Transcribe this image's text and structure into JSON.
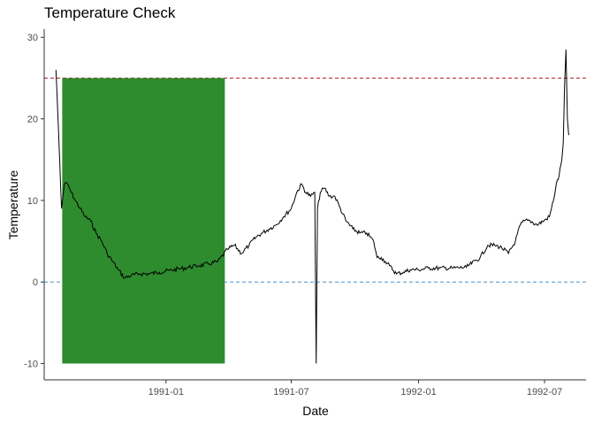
{
  "chart_data": {
    "type": "line",
    "title": "Temperature Check",
    "xlabel": "Date",
    "ylabel": "Temperature",
    "ylim": [
      -12,
      31
    ],
    "xlim": [
      "1990-07-09",
      "1992-08-30"
    ],
    "yticks": [
      -10,
      0,
      10,
      20,
      30
    ],
    "xticks": [
      {
        "date": "1991-01-01",
        "label": "1991-01"
      },
      {
        "date": "1991-07-01",
        "label": "1991-07"
      },
      {
        "date": "1992-01-01",
        "label": "1992-01"
      },
      {
        "date": "1992-07-01",
        "label": "1992-07"
      }
    ],
    "grid": false,
    "reference_lines": [
      {
        "y": 25,
        "color": "#b2182b",
        "style": "dashed"
      },
      {
        "y": 0,
        "color": "#4a90c8",
        "style": "dashed"
      }
    ],
    "shaded_region": {
      "x_start": "1990-08-04",
      "x_end": "1991-03-27",
      "y_start": -10,
      "y_end": 25,
      "color": "#2e8b2e"
    },
    "series": [
      {
        "color": "#000000",
        "x": [
          "1990-07-26",
          "1990-07-30",
          "1990-08-03",
          "1990-08-07",
          "1990-08-12",
          "1990-08-17",
          "1990-08-23",
          "1990-08-30",
          "1990-09-06",
          "1990-09-14",
          "1990-09-22",
          "1990-09-30",
          "1990-10-08",
          "1990-10-16",
          "1990-10-24",
          "1990-11-02",
          "1990-11-12",
          "1990-11-24",
          "1990-12-08",
          "1990-12-22",
          "1991-01-06",
          "1991-01-20",
          "1991-02-03",
          "1991-02-17",
          "1991-03-03",
          "1991-03-17",
          "1991-03-31",
          "1991-04-10",
          "1991-04-20",
          "1991-05-01",
          "1991-05-11",
          "1991-05-20",
          "1991-05-30",
          "1991-06-09",
          "1991-06-20",
          "1991-07-01",
          "1991-07-09",
          "1991-07-16",
          "1991-07-22",
          "1991-07-29",
          "1991-08-04",
          "1991-08-06",
          "1991-08-08",
          "1991-08-12",
          "1991-08-18",
          "1991-08-25",
          "1991-09-02",
          "1991-09-10",
          "1991-09-18",
          "1991-09-28",
          "1991-10-08",
          "1991-10-18",
          "1991-10-28",
          "1991-11-02",
          "1991-11-08",
          "1991-11-14",
          "1991-11-20",
          "1991-11-30",
          "1991-12-10",
          "1991-12-20",
          "1992-01-01",
          "1992-01-15",
          "1992-02-01",
          "1992-02-20",
          "1992-03-10",
          "1992-03-30",
          "1992-04-10",
          "1992-04-20",
          "1992-04-30",
          "1992-05-10",
          "1992-05-20",
          "1992-05-27",
          "1992-06-02",
          "1992-06-10",
          "1992-06-20",
          "1992-06-30",
          "1992-07-08",
          "1992-07-14",
          "1992-07-18",
          "1992-07-22",
          "1992-07-26",
          "1992-07-28",
          "1992-07-30",
          "1992-08-01",
          "1992-08-03",
          "1992-08-05"
        ],
        "y": [
          26,
          18,
          9,
          12,
          12,
          11,
          10,
          9,
          8,
          7.5,
          6,
          5,
          3.5,
          2.5,
          1.5,
          0.5,
          0.8,
          1,
          1,
          1.2,
          1.4,
          1.6,
          1.8,
          2,
          2.2,
          2.5,
          4,
          4.5,
          3.5,
          4.5,
          5.5,
          6,
          6.5,
          7,
          8,
          9,
          11,
          12,
          11,
          10.5,
          11,
          -10,
          9,
          11,
          11.5,
          10.5,
          10.5,
          9,
          7.5,
          6.5,
          6,
          6,
          5,
          3,
          3,
          2.5,
          2,
          1,
          1.2,
          1.5,
          1.5,
          1.7,
          1.7,
          1.7,
          1.8,
          3,
          4.5,
          4.5,
          4.2,
          3.5,
          5,
          7,
          7.5,
          7.5,
          7,
          7.5,
          8,
          10,
          12,
          13,
          15,
          17,
          24,
          28.5,
          20,
          18
        ]
      }
    ]
  }
}
